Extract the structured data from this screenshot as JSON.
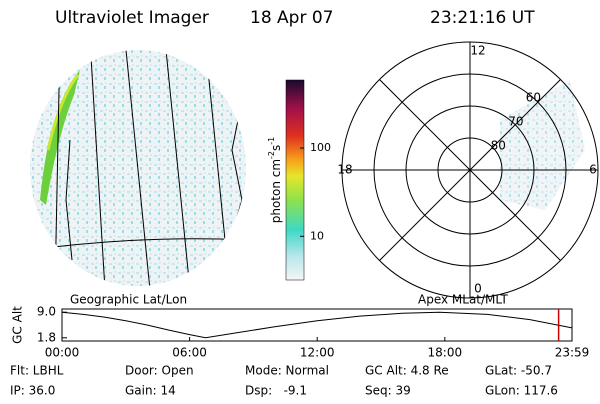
{
  "header": {
    "instrument": "Ultraviolet Imager",
    "date": "18 Apr 07",
    "time": "23:21:16 UT"
  },
  "map": {
    "label": "Geographic Lat/Lon"
  },
  "colorbar": {
    "label": {
      "base": "photon cm",
      "exp1": "-2",
      "mid": "s",
      "exp2": "-1"
    },
    "ylim": [
      3.2,
      590
    ],
    "log": true,
    "yticks": [
      10,
      100
    ]
  },
  "polar": {
    "label": "Apex MLat/MLT",
    "rlim": [
      50,
      90
    ],
    "rings": [
      80,
      70,
      60
    ],
    "hours": [
      {
        "value": 12,
        "label": "12"
      },
      {
        "value": 18,
        "label": "18"
      },
      {
        "value": 6,
        "label": "6"
      },
      {
        "value": 0,
        "label": "0"
      }
    ]
  },
  "chart_data": {
    "type": "line",
    "ylabel": "GC Alt",
    "x": [
      0,
      1,
      2,
      3,
      4,
      5,
      6,
      6.75,
      8,
      10,
      12,
      14,
      16,
      17.75,
      20,
      22,
      23.98
    ],
    "values": [
      9.0,
      8.4,
      7.6,
      6.6,
      5.4,
      4.0,
      2.7,
      1.8,
      3.0,
      4.9,
      6.6,
      7.9,
      8.7,
      9.0,
      8.4,
      6.9,
      4.6
    ],
    "color": "#000000",
    "xlim": [
      0,
      23.98
    ],
    "xticks": [
      {
        "value": 0,
        "label": "00:00"
      },
      {
        "value": 6,
        "label": "06:00"
      },
      {
        "value": 12,
        "label": "12:00"
      },
      {
        "value": 18,
        "label": "18:00"
      },
      {
        "value": 23.98,
        "label": "23:59"
      }
    ],
    "ylim": [
      0.9,
      9.9
    ],
    "yticks": [
      {
        "value": 9.0,
        "label": "9.0"
      },
      {
        "value": 1.8,
        "label": "1.8"
      }
    ],
    "marker": 23.35,
    "marker_color": "#cc0000"
  },
  "footer": {
    "rows": [
      [
        "Flt: LBHL",
        "Door: Open",
        "Mode: Normal",
        "GC Alt: 4.8 Re",
        "GLat: -50.7"
      ],
      [
        "IP: 36.0",
        "Gain: 14",
        "Dsp:   -9.1",
        "Seq: 39",
        "GLon: 117.6"
      ]
    ]
  }
}
